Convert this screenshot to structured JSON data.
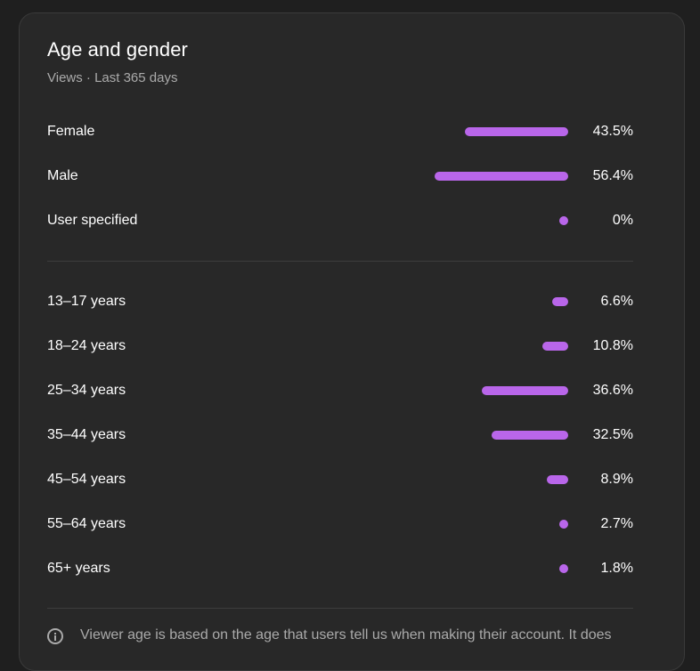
{
  "card": {
    "title": "Age and gender",
    "subtitle": "Views · Last 365 days"
  },
  "gender": [
    {
      "label": "Female",
      "percent_label": "43.5%",
      "value": 43.5
    },
    {
      "label": "Male",
      "percent_label": "56.4%",
      "value": 56.4
    },
    {
      "label": "User specified",
      "percent_label": "0%",
      "value": 0
    }
  ],
  "age": [
    {
      "label": "13–17 years",
      "percent_label": "6.6%",
      "value": 6.6
    },
    {
      "label": "18–24 years",
      "percent_label": "10.8%",
      "value": 10.8
    },
    {
      "label": "25–34 years",
      "percent_label": "36.6%",
      "value": 36.6
    },
    {
      "label": "35–44 years",
      "percent_label": "32.5%",
      "value": 32.5
    },
    {
      "label": "45–54 years",
      "percent_label": "8.9%",
      "value": 8.9
    },
    {
      "label": "55–64 years",
      "percent_label": "2.7%",
      "value": 2.7
    },
    {
      "label": "65+ years",
      "percent_label": "1.8%",
      "value": 1.8
    }
  ],
  "colors": {
    "bar": "#b966ea"
  },
  "footer": {
    "icon": "info-icon",
    "note": "Viewer age is based on the age that users tell us when making their account. It does"
  }
}
